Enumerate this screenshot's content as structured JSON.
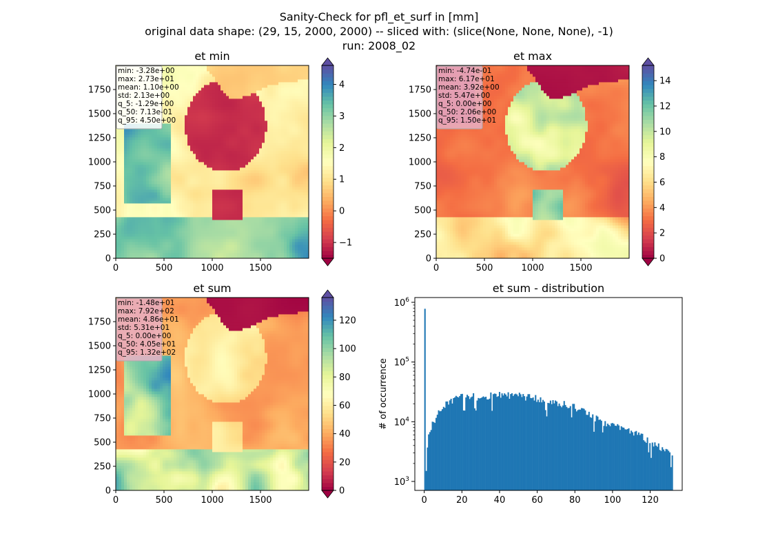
{
  "figure": {
    "title_lines": [
      "Sanity-Check for pfl_et_surf in [mm]",
      "original data shape: (29, 15, 2000, 2000) -- sliced with: (slice(None, None, None), -1)",
      "run: 2008_02"
    ]
  },
  "colormap": "Spectral",
  "chart_data": [
    {
      "type": "heatmap",
      "title": "et min",
      "xlim": [
        0,
        2000
      ],
      "ylim": [
        0,
        2000
      ],
      "xticks": [
        0,
        500,
        1000,
        1500
      ],
      "yticks": [
        0,
        250,
        500,
        750,
        1000,
        1250,
        1500,
        1750
      ],
      "colorbar": {
        "range": [
          -1.5,
          4.6
        ],
        "ticks": [
          -1,
          0,
          1,
          2,
          3,
          4
        ],
        "extend": "both"
      },
      "stats": [
        "min: -3.28e+00",
        "max: 2.73e+01",
        "mean: 1.10e+00",
        "std: 2.13e+00",
        "q_5: -1.29e+00",
        "q_50: 7.13e-01",
        "q_95: 4.50e+00"
      ],
      "stats_box_color": "#ffffff"
    },
    {
      "type": "heatmap",
      "title": "et max",
      "xlim": [
        0,
        2000
      ],
      "ylim": [
        0,
        2000
      ],
      "xticks": [
        0,
        500,
        1000,
        1500
      ],
      "yticks": [
        0,
        250,
        500,
        750,
        1000,
        1250,
        1500,
        1750
      ],
      "colorbar": {
        "range": [
          0,
          15.2
        ],
        "ticks": [
          0,
          2,
          4,
          6,
          8,
          10,
          12,
          14
        ],
        "extend": "both"
      },
      "stats": [
        "min: -4.74e-01",
        "max: 6.17e+01",
        "mean: 3.92e+00",
        "std: 5.47e+00",
        "q_5: 0.00e+00",
        "q_50: 2.06e+00",
        "q_95: 1.50e+01"
      ],
      "stats_box_color": "#e8b0c4"
    },
    {
      "type": "heatmap",
      "title": "et sum",
      "xlim": [
        0,
        2000
      ],
      "ylim": [
        0,
        2000
      ],
      "xticks": [
        0,
        500,
        1000,
        1500
      ],
      "yticks": [
        0,
        250,
        500,
        750,
        1000,
        1250,
        1500,
        1750
      ],
      "colorbar": {
        "range": [
          0,
          136
        ],
        "ticks": [
          0,
          20,
          40,
          60,
          80,
          100,
          120
        ],
        "extend": "both"
      },
      "stats": [
        "min: -1.48e+01",
        "max: 7.92e+02",
        "mean: 4.86e+01",
        "std: 5.31e+01",
        "q_5: 0.00e+00",
        "q_50: 4.05e+01",
        "q_95: 1.32e+02"
      ],
      "stats_box_color": "#e8b0c4"
    },
    {
      "type": "bar",
      "title": "et sum - distribution",
      "ylabel": "# of occurrence",
      "yscale": "log",
      "xlim": [
        -5,
        137
      ],
      "ylim_exponents": [
        2.85,
        6.08
      ],
      "xticks": [
        0,
        20,
        40,
        60,
        80,
        100,
        120
      ],
      "yticks": [
        "10^3",
        "10^4",
        "10^5",
        "10^6"
      ],
      "bar_color": "#1f77b4",
      "bin_width": 0.66,
      "peaks": [
        [
          0,
          780000
        ],
        [
          0.7,
          1500
        ],
        [
          1.4,
          3700
        ]
      ],
      "envelope": [
        [
          2,
          6000
        ],
        [
          4,
          9000
        ],
        [
          6,
          12000
        ],
        [
          8,
          15000
        ],
        [
          10,
          18000
        ],
        [
          14,
          22000
        ],
        [
          18,
          25000
        ],
        [
          22,
          27000
        ],
        [
          26,
          26500
        ],
        [
          30,
          26000
        ],
        [
          34,
          27000
        ],
        [
          38,
          28000
        ],
        [
          42,
          30000
        ],
        [
          46,
          27500
        ],
        [
          50,
          27000
        ],
        [
          54,
          26000
        ],
        [
          58,
          25000
        ],
        [
          62,
          23500
        ],
        [
          66,
          22500
        ],
        [
          70,
          21000
        ],
        [
          74,
          19500
        ],
        [
          78,
          18000
        ],
        [
          82,
          16500
        ],
        [
          86,
          14000
        ],
        [
          90,
          12000
        ],
        [
          94,
          10000
        ],
        [
          98,
          9000
        ],
        [
          102,
          8200
        ],
        [
          106,
          7500
        ],
        [
          110,
          6800
        ],
        [
          114,
          6000
        ],
        [
          118,
          5000
        ],
        [
          122,
          4200
        ],
        [
          126,
          3500
        ],
        [
          130,
          3000
        ],
        [
          131.5,
          2600
        ]
      ]
    }
  ]
}
